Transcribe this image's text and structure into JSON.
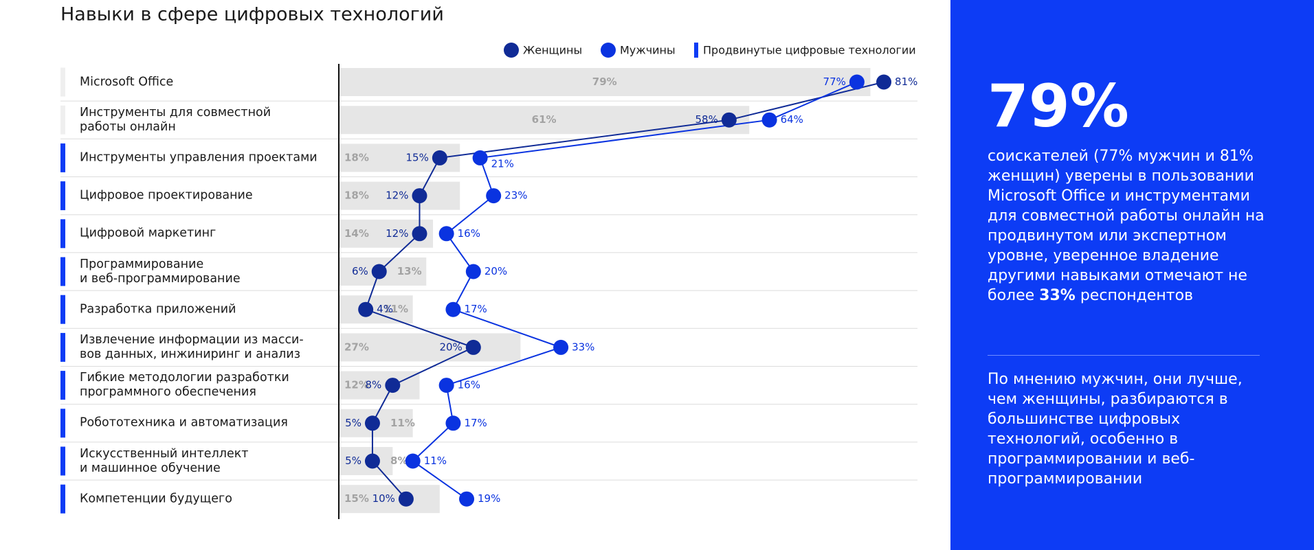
{
  "chart_data": {
    "type": "dot-bar",
    "title": "Навыки в сфере цифровых технологий",
    "categories": [
      "Microsoft Office",
      "Инструменты для совместной\nработы онлайн",
      "Инструменты управления проектами",
      "Цифровое проектирование",
      "Цифровой маркетинг",
      "Программирование\nи веб-программирование",
      "Разработка приложений",
      "Извлечение информации из масси-\nвов данных, инжиниринг и анализ",
      "Гибкие методологии разработки\nпрограммного обеспечения",
      "Робототехника и автоматизация",
      "Искусственный интеллект\nи машинное обучение",
      "Компетенции будущего"
    ],
    "advanced": [
      false,
      false,
      true,
      true,
      true,
      true,
      true,
      true,
      true,
      true,
      true,
      true
    ],
    "advanced_label": "Продвинутые цифровые технологии",
    "advanced_color": "#0d3cf5",
    "bar_color": "#e6e6e6",
    "total": {
      "values": [
        79,
        61,
        18,
        18,
        14,
        13,
        11,
        27,
        12,
        11,
        8,
        15
      ],
      "value_labels": [
        "79%",
        "61%",
        "18%",
        "18%",
        "14%",
        "13%",
        "11%",
        "27%",
        "12%",
        "11%",
        "8%",
        "15%"
      ]
    },
    "series": [
      {
        "name": "Женщины",
        "color": "#102b96",
        "values": [
          81,
          58,
          15,
          12,
          12,
          6,
          4,
          20,
          8,
          5,
          5,
          10
        ],
        "value_labels": [
          "81%",
          "58%",
          "15%",
          "12%",
          "12%",
          "6%",
          "4%",
          "20%",
          "8%",
          "5%",
          "5%",
          "10%"
        ]
      },
      {
        "name": "Мужчины",
        "color": "#0a33e0",
        "values": [
          77,
          64,
          21,
          23,
          16,
          20,
          17,
          33,
          16,
          17,
          11,
          19
        ],
        "value_labels": [
          "77%",
          "64%",
          "21%",
          "23%",
          "16%",
          "20%",
          "17%",
          "33%",
          "16%",
          "17%",
          "11%",
          "19%"
        ]
      }
    ],
    "xlim": [
      0,
      86
    ]
  },
  "sidebar": {
    "headline": "79%",
    "text_before": "соискателей (77% мужчин и 81% женщин) уверены в пользовании Microsoft Office и инструментами для совмес­тной работы онлайн на прод­винутом или экспертном уровне, уверенное владение другими навыками отмечают не более",
    "text_bold": "33%",
    "text_after": "респондентов",
    "text2": "По мнению мужчин, они лучше, чем женщины, разбираются в большинстве цифровых технологий, особенно в программирова­нии и веб-программировании"
  }
}
